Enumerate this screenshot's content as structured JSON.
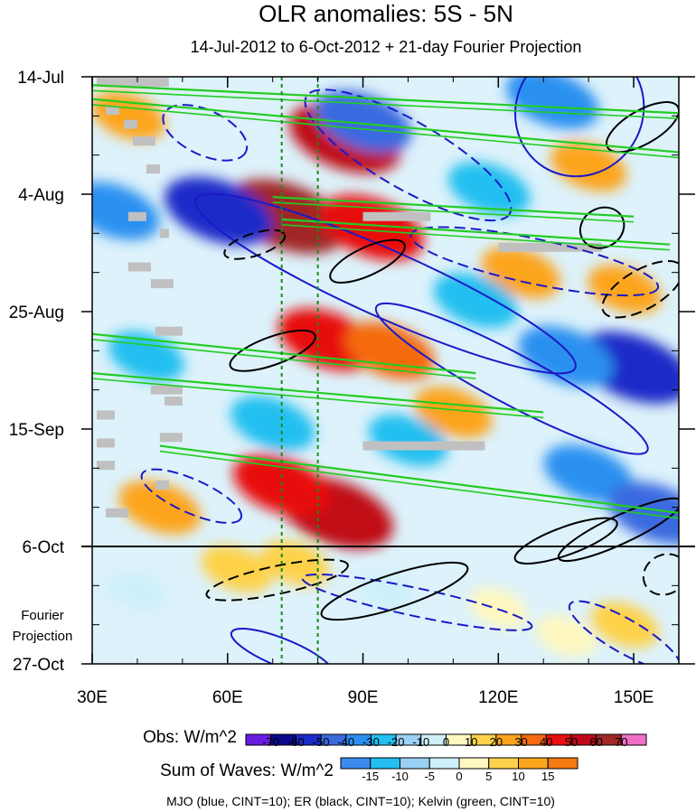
{
  "chart_data": {
    "type": "heatmap",
    "title": "OLR anomalies: 5S - 5N",
    "subtitle": "14-Jul-2012 to 6-Oct-2012 + 21-day Fourier Projection",
    "xlabel": "",
    "ylabel": "",
    "x_range": [
      30,
      160
    ],
    "x_ticks": [
      {
        "value": 30,
        "label": "30E"
      },
      {
        "value": 60,
        "label": "60E"
      },
      {
        "value": 90,
        "label": "90E"
      },
      {
        "value": 120,
        "label": "120E"
      },
      {
        "value": 150,
        "label": "150E"
      }
    ],
    "y_range_days": [
      0,
      105
    ],
    "y_ticks": [
      {
        "day": 0,
        "label": "14-Jul"
      },
      {
        "day": 21,
        "label": "4-Aug"
      },
      {
        "day": 42,
        "label": "25-Aug"
      },
      {
        "day": 63,
        "label": "15-Sep"
      },
      {
        "day": 84,
        "label": "6-Oct"
      },
      {
        "day": 105,
        "label": "27-Oct"
      }
    ],
    "projection_start_day": 84,
    "projection_label_line1": "Fourier",
    "projection_label_line2": "Projection",
    "mjo_lon_markers": [
      72,
      80
    ],
    "obs_colorbar": {
      "label": "Obs: W/m^2",
      "levels": [
        "-70",
        "-60",
        "-50",
        "-40",
        "-30",
        "-20",
        "-10",
        "0",
        "10",
        "20",
        "30",
        "40",
        "50",
        "60",
        "70"
      ],
      "colors": [
        "#6a1be0",
        "#0a0a8c",
        "#1a2ac8",
        "#3a6ae0",
        "#2a90f0",
        "#22bff0",
        "#9ad0f4",
        "#cdf0fa",
        "#fef8c0",
        "#fdd24a",
        "#fca41c",
        "#f46a10",
        "#e81010",
        "#c00818",
        "#a02828",
        "#f070c8"
      ]
    },
    "waves_colorbar": {
      "label": "Sum of Waves: W/m^2",
      "levels": [
        "-15",
        "-10",
        "-5",
        "0",
        "5",
        "10",
        "15"
      ],
      "colors": [
        "#3a8af0",
        "#22bff0",
        "#9ad0f4",
        "#cdf0fa",
        "#fef8c0",
        "#fdd24a",
        "#fca41c",
        "#f47a10"
      ]
    },
    "footer_text": "MJO (blue, CINT=10); ER (black, CINT=10); Kelvin (green, CINT=10)",
    "series": [
      {
        "name": "MJO",
        "color": "#1a1ac8",
        "contour_interval": 10
      },
      {
        "name": "ER",
        "color": "#000000",
        "contour_interval": 10
      },
      {
        "name": "Kelvin",
        "color": "#22cc22",
        "contour_interval": 10
      }
    ],
    "anomaly_blobs": [
      {
        "lon": 86,
        "day": 11,
        "value": 55
      },
      {
        "lon": 73,
        "day": 25,
        "value": 62
      },
      {
        "lon": 92,
        "day": 27,
        "value": 48
      },
      {
        "lon": 82,
        "day": 47,
        "value": 42
      },
      {
        "lon": 96,
        "day": 49,
        "value": 35
      },
      {
        "lon": 84,
        "day": 78,
        "value": 58
      },
      {
        "lon": 72,
        "day": 73,
        "value": 42
      },
      {
        "lon": 125,
        "day": 35,
        "value": 25
      },
      {
        "lon": 140,
        "day": 16,
        "value": 22
      },
      {
        "lon": 148,
        "day": 38,
        "value": 20
      },
      {
        "lon": 45,
        "day": 77,
        "value": 28
      },
      {
        "lon": 38,
        "day": 7,
        "value": 20
      },
      {
        "lon": 110,
        "day": 60,
        "value": 24
      },
      {
        "lon": 58,
        "day": 24,
        "value": -52
      },
      {
        "lon": 35,
        "day": 24,
        "value": -35
      },
      {
        "lon": 90,
        "day": 8,
        "value": -42
      },
      {
        "lon": 132,
        "day": 4,
        "value": -38
      },
      {
        "lon": 150,
        "day": 52,
        "value": -58
      },
      {
        "lon": 135,
        "day": 50,
        "value": -40
      },
      {
        "lon": 115,
        "day": 40,
        "value": -30
      },
      {
        "lon": 140,
        "day": 71,
        "value": -35
      },
      {
        "lon": 155,
        "day": 78,
        "value": -42
      },
      {
        "lon": 100,
        "day": 65,
        "value": -25
      },
      {
        "lon": 70,
        "day": 62,
        "value": -30
      },
      {
        "lon": 42,
        "day": 50,
        "value": -22
      },
      {
        "lon": 118,
        "day": 20,
        "value": -28
      },
      {
        "lon": 62,
        "day": 88,
        "value": 18
      },
      {
        "lon": 75,
        "day": 87,
        "value": 15
      },
      {
        "lon": 148,
        "day": 98,
        "value": 15
      },
      {
        "lon": 135,
        "day": 100,
        "value": 8
      },
      {
        "lon": 40,
        "day": 92,
        "value": -6
      },
      {
        "lon": 95,
        "day": 92,
        "value": -5
      },
      {
        "lon": 120,
        "day": 95,
        "value": 6
      }
    ],
    "mjo_contours": [
      {
        "lon": 138,
        "day": 6,
        "rlon": 14,
        "rday": 12,
        "rot": 32,
        "dash": false
      },
      {
        "lon": 100,
        "day": 14,
        "rlon": 26,
        "rday": 6,
        "rot": 30,
        "dash": true
      },
      {
        "lon": 55,
        "day": 10,
        "rlon": 10,
        "rday": 4,
        "rot": 25,
        "dash": true
      },
      {
        "lon": 95,
        "day": 37,
        "rlon": 46,
        "rday": 6,
        "rot": 24,
        "dash": false
      },
      {
        "lon": 128,
        "day": 33,
        "rlon": 28,
        "rday": 4,
        "rot": 12,
        "dash": true
      },
      {
        "lon": 123,
        "day": 54,
        "rlon": 34,
        "rday": 4.5,
        "rot": 28,
        "dash": false
      },
      {
        "lon": 52,
        "day": 75,
        "rlon": 12,
        "rday": 3,
        "rot": 24,
        "dash": true
      },
      {
        "lon": 102,
        "day": 94,
        "rlon": 26,
        "rday": 2.5,
        "rot": 12,
        "dash": true
      },
      {
        "lon": 148,
        "day": 100,
        "rlon": 14,
        "rday": 3,
        "rot": 30,
        "dash": true
      },
      {
        "lon": 72,
        "day": 103,
        "rlon": 12,
        "rday": 2.5,
        "rot": 22,
        "dash": false
      }
    ],
    "er_contours": [
      {
        "lon": 152,
        "day": 9,
        "rlon": 9,
        "rday": 3,
        "rot": -30,
        "dash": false
      },
      {
        "lon": 143,
        "day": 27,
        "rlon": 5,
        "rday": 3.5,
        "rot": -30,
        "dash": false
      },
      {
        "lon": 66,
        "day": 30,
        "rlon": 7,
        "rday": 2,
        "rot": -18,
        "dash": true
      },
      {
        "lon": 91,
        "day": 33,
        "rlon": 9,
        "rday": 2.5,
        "rot": -25,
        "dash": false
      },
      {
        "lon": 152,
        "day": 38,
        "rlon": 10,
        "rday": 3.5,
        "rot": -30,
        "dash": true
      },
      {
        "lon": 70,
        "day": 49,
        "rlon": 10,
        "rday": 2.5,
        "rot": -20,
        "dash": false
      },
      {
        "lon": 147,
        "day": 81,
        "rlon": 15,
        "rday": 2.5,
        "rot": -25,
        "dash": false
      },
      {
        "lon": 135,
        "day": 83,
        "rlon": 12,
        "rday": 2.5,
        "rot": -20,
        "dash": false
      },
      {
        "lon": 71,
        "day": 90,
        "rlon": 16,
        "rday": 2.5,
        "rot": -12,
        "dash": true
      },
      {
        "lon": 97,
        "day": 92,
        "rlon": 17,
        "rday": 3,
        "rot": -18,
        "dash": false
      },
      {
        "lon": 157,
        "day": 89,
        "rlon": 5,
        "rday": 3.5,
        "rot": -30,
        "dash": true
      }
    ],
    "kelvin_lines": [
      {
        "lon0": 30,
        "day0": 1.5,
        "lon1": 160,
        "day1": 6.5
      },
      {
        "lon0": 30,
        "day0": 4,
        "lon1": 160,
        "day1": 13.5
      },
      {
        "lon0": 70,
        "day0": 21.5,
        "lon1": 150,
        "day1": 25
      },
      {
        "lon0": 72,
        "day0": 25.5,
        "lon1": 158,
        "day1": 30
      },
      {
        "lon0": 30,
        "day0": 46,
        "lon1": 115,
        "day1": 53
      },
      {
        "lon0": 30,
        "day0": 53,
        "lon1": 130,
        "day1": 60
      },
      {
        "lon0": 45,
        "day0": 66,
        "lon1": 160,
        "day1": 78
      }
    ],
    "missing_segments": [
      {
        "lon0": 31,
        "lon1": 47,
        "day": 1
      },
      {
        "lon0": 33,
        "lon1": 36,
        "day": 6
      },
      {
        "lon0": 37,
        "lon1": 40,
        "day": 8.5
      },
      {
        "lon0": 39,
        "lon1": 44,
        "day": 11.5
      },
      {
        "lon0": 42,
        "lon1": 45,
        "day": 16.5
      },
      {
        "lon0": 38,
        "lon1": 42,
        "day": 25
      },
      {
        "lon0": 45,
        "lon1": 47,
        "day": 28
      },
      {
        "lon0": 38,
        "lon1": 43,
        "day": 34
      },
      {
        "lon0": 43,
        "lon1": 48,
        "day": 37
      },
      {
        "lon0": 44,
        "lon1": 50,
        "day": 45.5
      },
      {
        "lon0": 90,
        "lon1": 105,
        "day": 25
      },
      {
        "lon0": 120,
        "lon1": 143,
        "day": 30.5
      },
      {
        "lon0": 43,
        "lon1": 50,
        "day": 56
      },
      {
        "lon0": 46,
        "lon1": 50,
        "day": 58
      },
      {
        "lon0": 31,
        "lon1": 35,
        "day": 60.5
      },
      {
        "lon0": 45,
        "lon1": 50,
        "day": 64.5
      },
      {
        "lon0": 31,
        "lon1": 35,
        "day": 65.5
      },
      {
        "lon0": 90,
        "lon1": 117,
        "day": 66
      },
      {
        "lon0": 31,
        "lon1": 35,
        "day": 69.5
      },
      {
        "lon0": 44,
        "lon1": 47,
        "day": 73
      },
      {
        "lon0": 33,
        "lon1": 38,
        "day": 78
      }
    ]
  }
}
